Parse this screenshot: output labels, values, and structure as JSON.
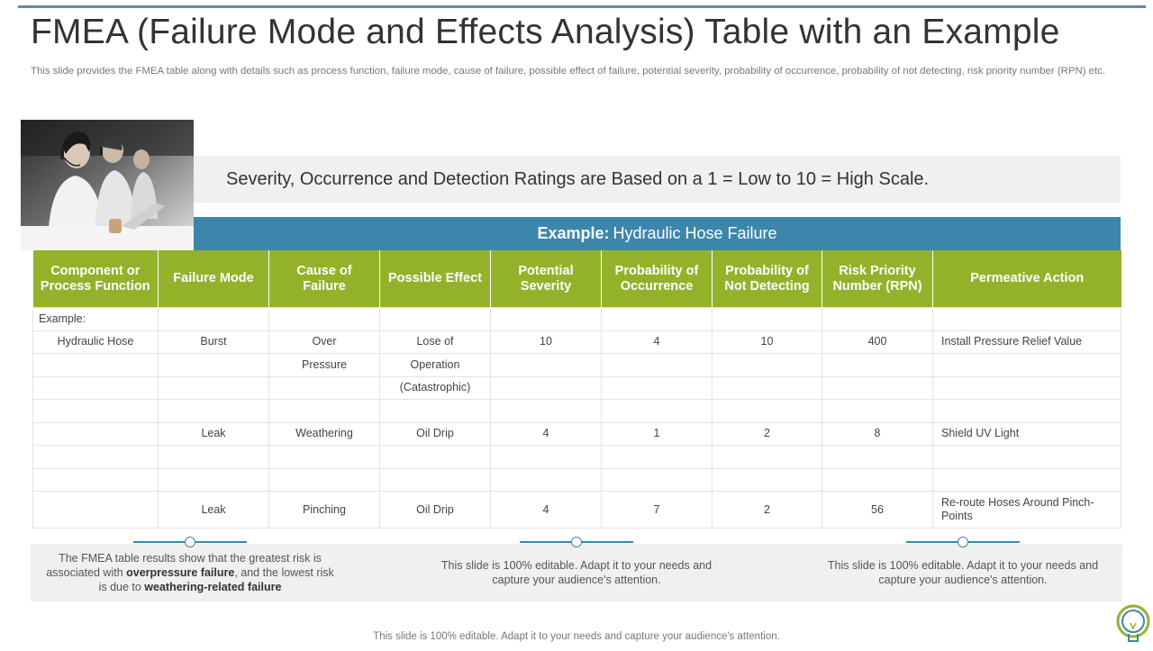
{
  "title": "FMEA (Failure Mode and Effects Analysis) Table with an Example",
  "subtitle": "This slide provides the FMEA table along with details such as process function, failure mode, cause of failure, possible effect of failure, potential severity, probability of occurrence, probability of not detecting, risk priority number (RPN) etc.",
  "rating_scale_text": "Severity, Occurrence and Detection Ratings are Based on a 1 = Low to 10 = High Scale.",
  "example_bar": {
    "label": "Example:",
    "value": "Hydraulic Hose Failure"
  },
  "table": {
    "headers": [
      "Component or Process Function",
      "Failure Mode",
      "Cause of Failure",
      "Possible Effect",
      "Potential Severity",
      "Probability of Occurrence",
      "Probability of Not Detecting",
      "Risk Priority Number (RPN)",
      "Permeative Action"
    ],
    "rows": [
      [
        "Example:",
        "",
        "",
        "",
        "",
        "",
        "",
        "",
        ""
      ],
      [
        "Hydraulic Hose",
        "Burst",
        "Over",
        "Lose of",
        "10",
        "4",
        "10",
        "400",
        "Install Pressure Relief Value"
      ],
      [
        "",
        "",
        "Pressure",
        "Operation",
        "",
        "",
        "",
        "",
        ""
      ],
      [
        "",
        "",
        "",
        "(Catastrophic)",
        "",
        "",
        "",
        "",
        ""
      ],
      [
        "",
        "",
        "",
        "",
        "",
        "",
        "",
        "",
        ""
      ],
      [
        "",
        "Leak",
        "Weathering",
        "Oil Drip",
        "4",
        "1",
        "2",
        "8",
        "Shield UV Light"
      ],
      [
        "",
        "",
        "",
        "",
        "",
        "",
        "",
        "",
        ""
      ],
      [
        "",
        "",
        "",
        "",
        "",
        "",
        "",
        "",
        ""
      ],
      [
        "",
        "Leak",
        "Pinching",
        "Oil Drip",
        "4",
        "7",
        "2",
        "56",
        "Re-route Hoses Around Pinch-Points"
      ]
    ]
  },
  "summary": {
    "box1": {
      "part1": "The FMEA table results show that the greatest risk is associated with ",
      "bold1": "overpressure failure",
      "part2": ", and the lowest risk is due to ",
      "bold2": "weathering-related failure"
    },
    "box2": "This slide is 100% editable. Adapt it to your needs and capture your audience's attention.",
    "box3": "This slide is 100% editable. Adapt it to your needs and capture your audience's attention."
  },
  "footer": "This slide is 100% editable. Adapt it to your needs and capture your audience's attention.",
  "colors": {
    "header_green": "#93b22a",
    "accent_blue": "#3d86ab",
    "band_grey": "#f0f0f0"
  },
  "icons": [
    "call-center-photo",
    "lightbulb-icon"
  ]
}
